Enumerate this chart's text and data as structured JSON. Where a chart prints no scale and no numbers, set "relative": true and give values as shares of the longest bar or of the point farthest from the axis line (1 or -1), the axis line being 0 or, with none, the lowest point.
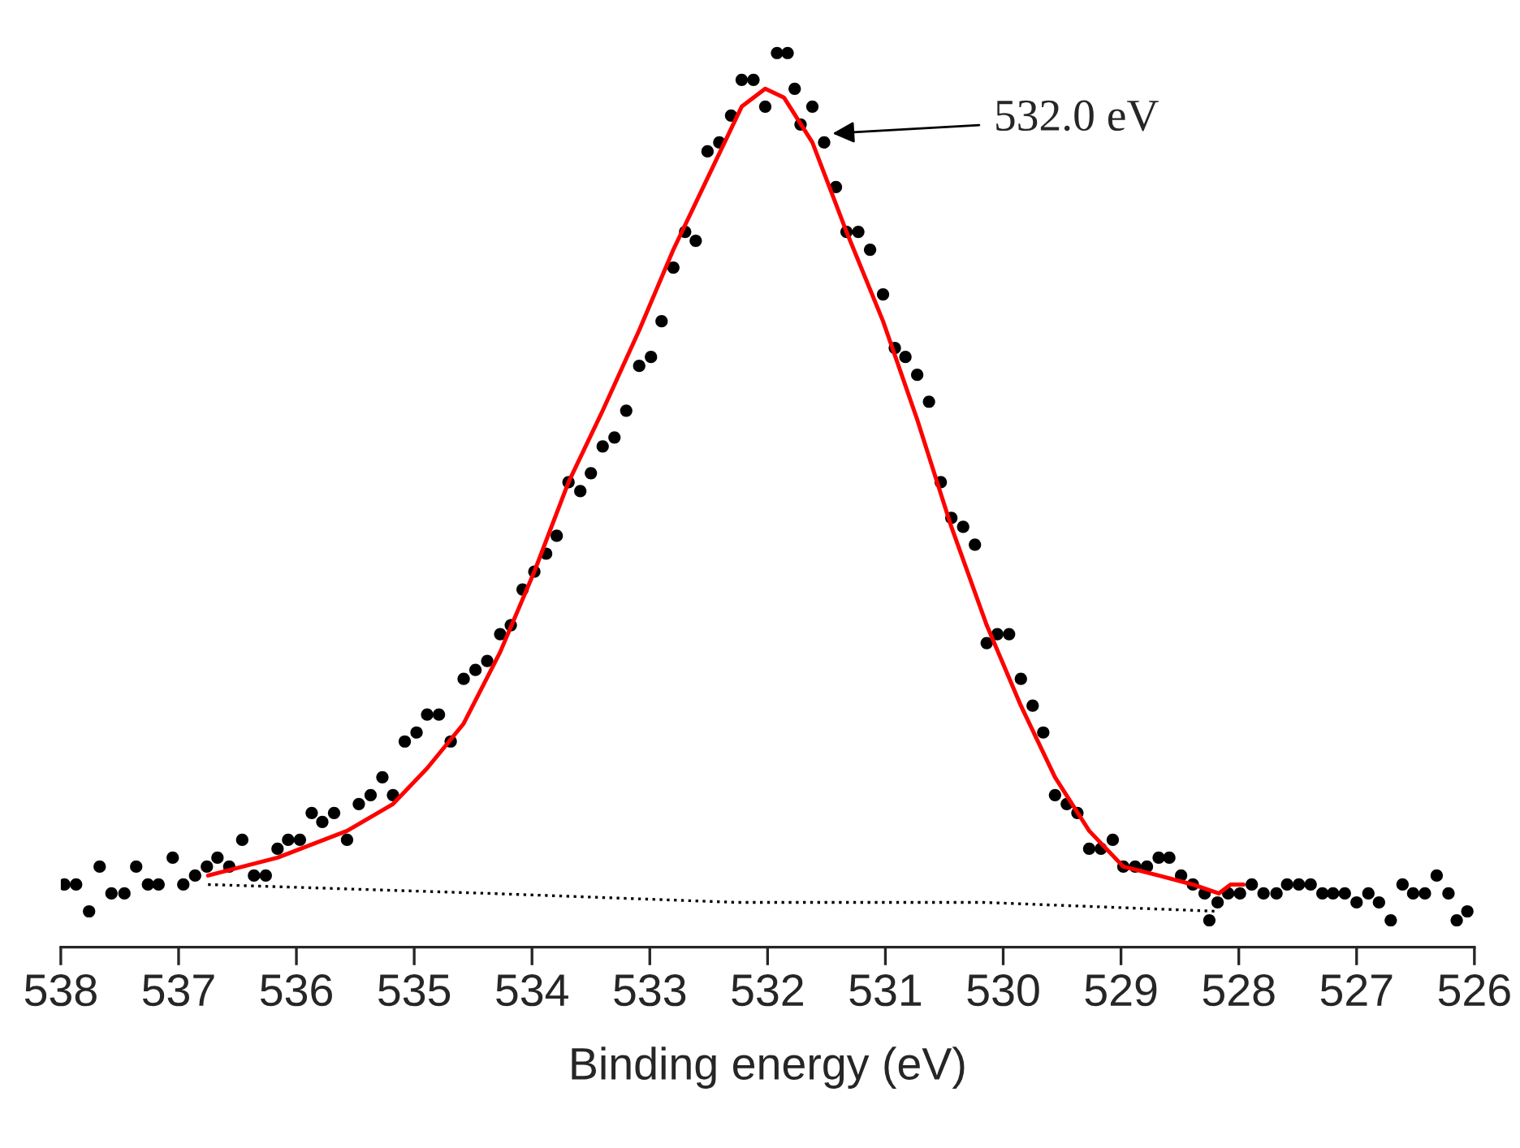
{
  "chart_data": {
    "type": "scatter",
    "relative": true,
    "xlabel": "Binding energy (eV)",
    "xlim": [
      538,
      526
    ],
    "xticks": [
      538,
      537,
      536,
      535,
      534,
      533,
      532,
      531,
      530,
      529,
      528,
      527,
      526
    ],
    "grid": false,
    "legend": false,
    "tick_labels": "x",
    "annotations": [
      "532.0 eV"
    ],
    "series": [
      {
        "color": "#000000",
        "marker": "circle",
        "x": [
          537.97,
          537.87,
          537.76,
          537.67,
          537.57,
          537.46,
          537.36,
          537.26,
          537.17,
          537.05,
          536.96,
          536.86,
          536.76,
          536.67,
          536.57,
          536.46,
          536.36,
          536.26,
          536.16,
          536.07,
          535.97,
          535.87,
          535.78,
          535.68,
          535.57,
          535.47,
          535.37,
          535.27,
          535.18,
          535.08,
          534.98,
          534.89,
          534.79,
          534.69,
          534.58,
          534.48,
          534.38,
          534.27,
          534.18,
          534.08,
          533.98,
          533.88,
          533.79,
          533.69,
          533.59,
          533.5,
          533.4,
          533.3,
          533.2,
          533.09,
          532.99,
          532.9,
          532.8,
          532.7,
          532.61,
          532.51,
          532.41,
          532.31,
          532.22,
          532.12,
          532.02,
          531.92,
          531.83,
          531.77,
          531.72,
          531.62,
          531.52,
          531.42,
          531.33,
          531.23,
          531.13,
          531.02,
          530.92,
          530.83,
          530.73,
          530.63,
          530.53,
          530.44,
          530.34,
          530.24,
          530.14,
          530.05,
          529.95,
          529.85,
          529.75,
          529.66,
          529.56,
          529.46,
          529.37,
          529.27,
          529.17,
          529.07,
          528.98,
          528.88,
          528.78,
          528.68,
          528.59,
          528.49,
          528.39,
          528.29,
          528.25,
          528.18,
          528.09,
          527.99,
          527.89,
          527.79,
          527.68,
          527.59,
          527.49,
          527.39,
          527.29,
          527.2,
          527.1,
          527.0,
          526.9,
          526.81,
          526.71,
          526.61,
          526.52,
          526.42,
          526.32,
          526.22,
          526.15,
          526.06
        ],
        "values": [
          0.07,
          0.07,
          0.04,
          0.09,
          0.06,
          0.06,
          0.09,
          0.07,
          0.07,
          0.1,
          0.07,
          0.08,
          0.09,
          0.1,
          0.09,
          0.12,
          0.08,
          0.08,
          0.11,
          0.12,
          0.12,
          0.15,
          0.14,
          0.15,
          0.12,
          0.16,
          0.17,
          0.19,
          0.17,
          0.23,
          0.24,
          0.26,
          0.26,
          0.23,
          0.3,
          0.31,
          0.32,
          0.35,
          0.36,
          0.4,
          0.42,
          0.44,
          0.46,
          0.52,
          0.51,
          0.53,
          0.56,
          0.57,
          0.6,
          0.65,
          0.66,
          0.7,
          0.76,
          0.8,
          0.79,
          0.89,
          0.9,
          0.93,
          0.97,
          0.97,
          0.94,
          1.0,
          1.0,
          0.96,
          0.92,
          0.94,
          0.9,
          0.85,
          0.8,
          0.8,
          0.78,
          0.73,
          0.67,
          0.66,
          0.64,
          0.61,
          0.52,
          0.48,
          0.47,
          0.45,
          0.34,
          0.35,
          0.35,
          0.3,
          0.27,
          0.24,
          0.17,
          0.16,
          0.15,
          0.11,
          0.11,
          0.12,
          0.09,
          0.09,
          0.09,
          0.1,
          0.1,
          0.08,
          0.07,
          0.06,
          0.03,
          0.05,
          0.06,
          0.06,
          0.07,
          0.06,
          0.06,
          0.07,
          0.07,
          0.07,
          0.06,
          0.06,
          0.06,
          0.05,
          0.06,
          0.05,
          0.03,
          0.07,
          0.06,
          0.06,
          0.08,
          0.06,
          0.03,
          0.04
        ]
      },
      {
        "type": "line",
        "color": "#ff0000",
        "line_style": "solid",
        "x": [
          536.75,
          536.16,
          535.57,
          535.18,
          534.89,
          534.58,
          534.27,
          533.98,
          533.69,
          533.4,
          533.09,
          532.8,
          532.51,
          532.22,
          532.02,
          531.86,
          531.62,
          531.33,
          531.02,
          530.73,
          530.44,
          530.14,
          529.85,
          529.56,
          529.27,
          528.98,
          528.68,
          528.39,
          528.17,
          528.07,
          527.96
        ],
        "values": [
          0.08,
          0.1,
          0.13,
          0.16,
          0.2,
          0.25,
          0.33,
          0.42,
          0.52,
          0.6,
          0.69,
          0.78,
          0.86,
          0.94,
          0.96,
          0.95,
          0.9,
          0.8,
          0.7,
          0.59,
          0.47,
          0.36,
          0.27,
          0.19,
          0.13,
          0.09,
          0.08,
          0.07,
          0.06,
          0.07,
          0.07
        ]
      },
      {
        "type": "line",
        "color": "#000000",
        "line_style": "dotted",
        "x": [
          536.75,
          534.35,
          532.26,
          530.17,
          528.17
        ],
        "values": [
          0.07,
          0.06,
          0.05,
          0.05,
          0.04
        ]
      }
    ]
  }
}
